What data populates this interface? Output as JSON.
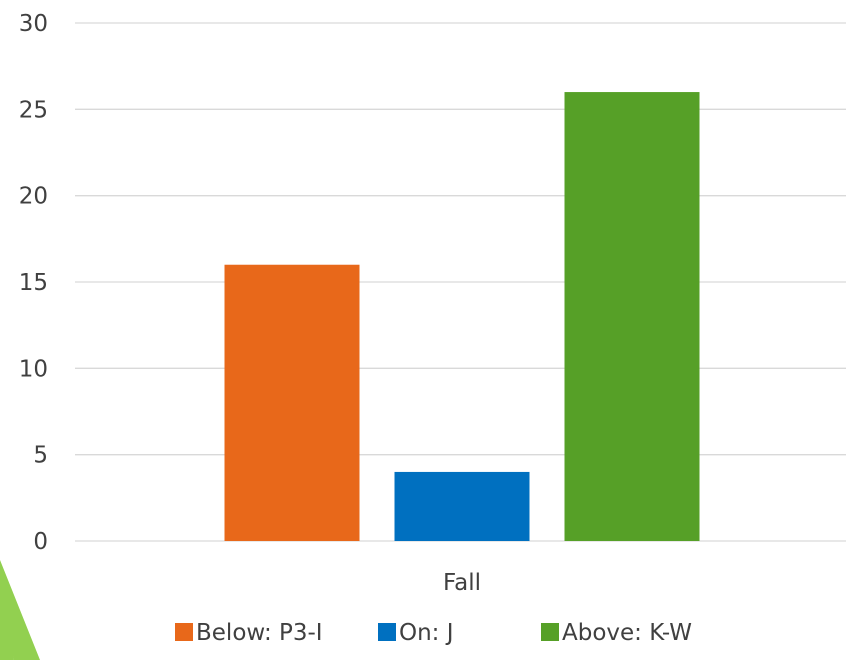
{
  "chart_data": {
    "type": "bar",
    "categories": [
      "Fall"
    ],
    "series": [
      {
        "name": "Below: P3-I",
        "values": [
          16
        ],
        "color": "#E8681A"
      },
      {
        "name": "On: J",
        "values": [
          4
        ],
        "color": "#0070C0"
      },
      {
        "name": "Above: K-W",
        "values": [
          26
        ],
        "color": "#56A027"
      }
    ],
    "ylim": [
      0,
      30
    ],
    "yticks": [
      0,
      5,
      10,
      15,
      20,
      25,
      30
    ],
    "grid": true,
    "legend_position": "bottom"
  },
  "decoration": {
    "accent_color": "#92D050",
    "shape": "green-triangle-corner"
  }
}
